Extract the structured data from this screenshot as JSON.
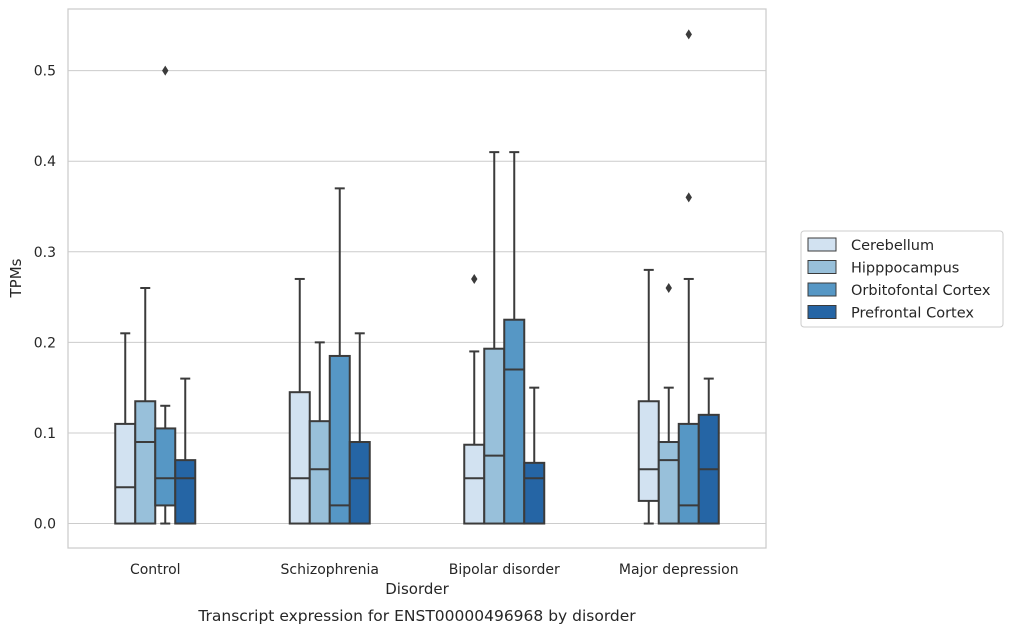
{
  "chart_data": {
    "type": "box",
    "xlabel": "Disorder",
    "ylabel": "TPMs",
    "caption": "Transcript expression for ENST00000496968 by disorder",
    "ylim": [
      -0.027,
      0.568
    ],
    "yticks": [
      "0.0",
      "0.1",
      "0.2",
      "0.3",
      "0.4",
      "0.5"
    ],
    "ytick_values": [
      0.0,
      0.1,
      0.2,
      0.3,
      0.4,
      0.5
    ],
    "grid": "horizontal",
    "legend_position": "right",
    "categories": [
      "Control",
      "Schizophrenia",
      "Bipolar disorder",
      "Major depression"
    ],
    "series": [
      {
        "name": "Cerebellum",
        "color": "#d2e2f1",
        "boxes": [
          {
            "min": 0.0,
            "q1": 0.0,
            "median": 0.04,
            "q3": 0.11,
            "max": 0.21,
            "outliers": []
          },
          {
            "min": 0.0,
            "q1": 0.0,
            "median": 0.05,
            "q3": 0.145,
            "max": 0.27,
            "outliers": []
          },
          {
            "min": 0.0,
            "q1": 0.0,
            "median": 0.05,
            "q3": 0.087,
            "max": 0.19,
            "outliers": [
              0.27
            ]
          },
          {
            "min": 0.0,
            "q1": 0.025,
            "median": 0.06,
            "q3": 0.135,
            "max": 0.28,
            "outliers": []
          }
        ]
      },
      {
        "name": "Hipppocampus",
        "color": "#98c0da",
        "boxes": [
          {
            "min": 0.0,
            "q1": 0.0,
            "median": 0.09,
            "q3": 0.135,
            "max": 0.26,
            "outliers": []
          },
          {
            "min": 0.0,
            "q1": 0.0,
            "median": 0.06,
            "q3": 0.113,
            "max": 0.2,
            "outliers": []
          },
          {
            "min": 0.0,
            "q1": 0.0,
            "median": 0.075,
            "q3": 0.193,
            "max": 0.41,
            "outliers": []
          },
          {
            "min": 0.0,
            "q1": 0.0,
            "median": 0.07,
            "q3": 0.09,
            "max": 0.15,
            "outliers": [
              0.26
            ]
          }
        ]
      },
      {
        "name": "Orbitofontal Cortex",
        "color": "#5697c5",
        "boxes": [
          {
            "min": 0.0,
            "q1": 0.02,
            "median": 0.05,
            "q3": 0.105,
            "max": 0.13,
            "outliers": [
              0.5
            ]
          },
          {
            "min": 0.0,
            "q1": 0.0,
            "median": 0.02,
            "q3": 0.185,
            "max": 0.37,
            "outliers": []
          },
          {
            "min": 0.0,
            "q1": 0.0,
            "median": 0.17,
            "q3": 0.225,
            "max": 0.41,
            "outliers": []
          },
          {
            "min": 0.0,
            "q1": 0.0,
            "median": 0.02,
            "q3": 0.11,
            "max": 0.27,
            "outliers": [
              0.36,
              0.54
            ]
          }
        ]
      },
      {
        "name": "Prefrontal Cortex",
        "color": "#2565a5",
        "boxes": [
          {
            "min": 0.0,
            "q1": 0.0,
            "median": 0.05,
            "q3": 0.07,
            "max": 0.16,
            "outliers": []
          },
          {
            "min": 0.0,
            "q1": 0.0,
            "median": 0.05,
            "q3": 0.09,
            "max": 0.21,
            "outliers": []
          },
          {
            "min": 0.0,
            "q1": 0.0,
            "median": 0.05,
            "q3": 0.067,
            "max": 0.15,
            "outliers": []
          },
          {
            "min": 0.0,
            "q1": 0.0,
            "median": 0.06,
            "q3": 0.12,
            "max": 0.16,
            "outliers": []
          }
        ]
      }
    ]
  }
}
